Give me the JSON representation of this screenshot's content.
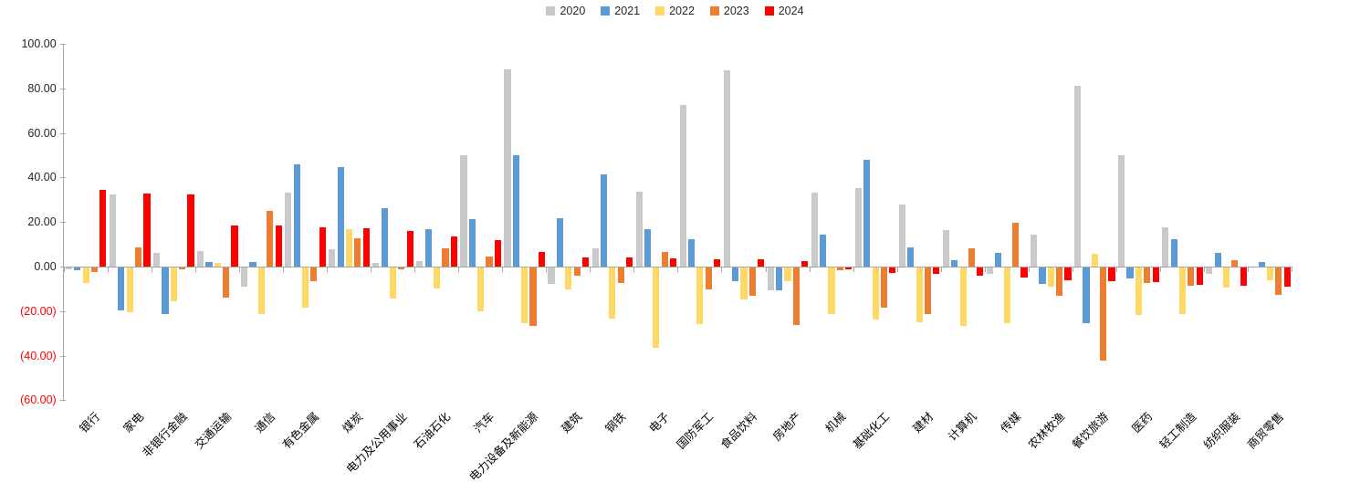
{
  "chart_data": {
    "type": "bar",
    "title": "",
    "xlabel": "",
    "ylabel": "",
    "ylim": [
      -60,
      100
    ],
    "grid": false,
    "legend_position": "top-center",
    "negative_tick_color": "#ff0000",
    "axis_color": "#a6a6a6",
    "categories": [
      "银行",
      "家电",
      "非银行金融",
      "交通运输",
      "通信",
      "有色金属",
      "煤炭",
      "电力及公用事业",
      "石油石化",
      "汽车",
      "电力设备及新能源",
      "建筑",
      "钢铁",
      "电子",
      "国防军工",
      "食品饮料",
      "房地产",
      "机械",
      "基础化工",
      "建材",
      "计算机",
      "传媒",
      "农林牧渔",
      "餐饮旅游",
      "医药",
      "轻工制造",
      "纺织服装",
      "商贸零售"
    ],
    "series": [
      {
        "name": "2020",
        "color": "#c9c9c9",
        "values": [
          -1.0,
          32.3,
          6.3,
          6.9,
          -8.8,
          33.1,
          7.7,
          1.5,
          2.5,
          49.8,
          88.6,
          -7.4,
          8.4,
          33.6,
          72.4,
          88.2,
          -10.2,
          33.2,
          35.1,
          28.0,
          16.2,
          -2.7,
          14.5,
          81.3,
          50.2,
          17.7,
          -3.0,
          0.0
        ]
      },
      {
        "name": "2021",
        "color": "#5b9bd5",
        "values": [
          -1.2,
          -19.4,
          -21.0,
          2.2,
          2.2,
          46.1,
          44.5,
          26.1,
          16.6,
          21.2,
          50.2,
          21.7,
          41.4,
          16.8,
          12.2,
          -6.0,
          -10.4,
          14.5,
          48.0,
          8.8,
          2.9,
          6.2,
          -7.2,
          -25.2,
          -5.1,
          12.2,
          6.3,
          1.9
        ]
      },
      {
        "name": "2022",
        "color": "#ffd966",
        "values": [
          -6.8,
          -20.0,
          -15.2,
          1.8,
          -21.0,
          -18.0,
          17.0,
          -14.0,
          -9.3,
          -19.5,
          -25.0,
          -9.9,
          -22.8,
          -36.2,
          -25.5,
          -14.3,
          -6.3,
          -21.1,
          -23.5,
          -24.6,
          -26.2,
          -25.2,
          -8.8,
          5.9,
          -21.5,
          -20.9,
          -9.1,
          -5.8
        ]
      },
      {
        "name": "2023",
        "color": "#ed7d31",
        "values": [
          -2.0,
          8.7,
          -1.0,
          -13.7,
          24.8,
          -6.3,
          12.8,
          -0.8,
          8.4,
          4.4,
          -26.3,
          -3.7,
          -7.1,
          6.6,
          -9.9,
          -12.9,
          -25.8,
          -1.1,
          -18.1,
          -20.8,
          8.2,
          19.5,
          -12.9,
          -41.7,
          -7.1,
          -8.1,
          3.0,
          -12.2
        ]
      },
      {
        "name": "2024",
        "color": "#ff0000",
        "values": [
          34.6,
          32.6,
          32.3,
          18.6,
          18.4,
          17.8,
          17.4,
          15.9,
          13.5,
          11.9,
          6.4,
          4.1,
          3.9,
          3.5,
          3.3,
          3.1,
          2.6,
          -0.9,
          -2.4,
          -2.9,
          -3.6,
          -4.7,
          -5.8,
          -6.0,
          -6.7,
          -7.7,
          -8.3,
          -8.6
        ]
      }
    ],
    "y_ticks": [
      {
        "value": 100,
        "label": "100.00"
      },
      {
        "value": 80,
        "label": "80.00"
      },
      {
        "value": 60,
        "label": "60.00"
      },
      {
        "value": 40,
        "label": "40.00"
      },
      {
        "value": 20,
        "label": "20.00"
      },
      {
        "value": 0,
        "label": "0.00"
      },
      {
        "value": -20,
        "label": "(20.00)"
      },
      {
        "value": -40,
        "label": "(40.00)"
      },
      {
        "value": -60,
        "label": "(60.00)"
      }
    ]
  }
}
